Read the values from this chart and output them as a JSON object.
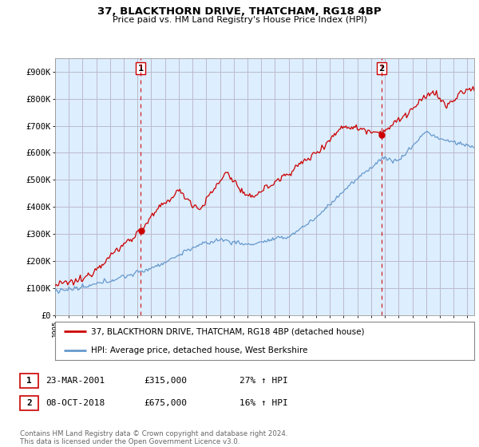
{
  "title": "37, BLACKTHORN DRIVE, THATCHAM, RG18 4BP",
  "subtitle": "Price paid vs. HM Land Registry's House Price Index (HPI)",
  "legend_line1": "37, BLACKTHORN DRIVE, THATCHAM, RG18 4BP (detached house)",
  "legend_line2": "HPI: Average price, detached house, West Berkshire",
  "sale1_date": "23-MAR-2001",
  "sale1_price": "£315,000",
  "sale1_hpi": "27% ↑ HPI",
  "sale2_date": "08-OCT-2018",
  "sale2_price": "£675,000",
  "sale2_hpi": "16% ↑ HPI",
  "footer": "Contains HM Land Registry data © Crown copyright and database right 2024.\nThis data is licensed under the Open Government Licence v3.0.",
  "red_color": "#cc0000",
  "blue_color": "#6699cc",
  "background_plot": "#ddeeff",
  "background_fig": "#ffffff",
  "grid_color": "#bbbbcc",
  "vline_color": "#cc0000",
  "marker_color": "#cc0000",
  "ylim": [
    0,
    950000
  ],
  "yticks": [
    0,
    100000,
    200000,
    300000,
    400000,
    500000,
    600000,
    700000,
    800000,
    900000
  ],
  "ytick_labels": [
    "£0",
    "£100K",
    "£200K",
    "£300K",
    "£400K",
    "£500K",
    "£600K",
    "£700K",
    "£800K",
    "£900K"
  ],
  "sale1_year": 2001.23,
  "sale2_year": 2018.77,
  "sale1_value": 315000,
  "sale2_value": 675000,
  "xmin": 1995,
  "xmax": 2025.5
}
